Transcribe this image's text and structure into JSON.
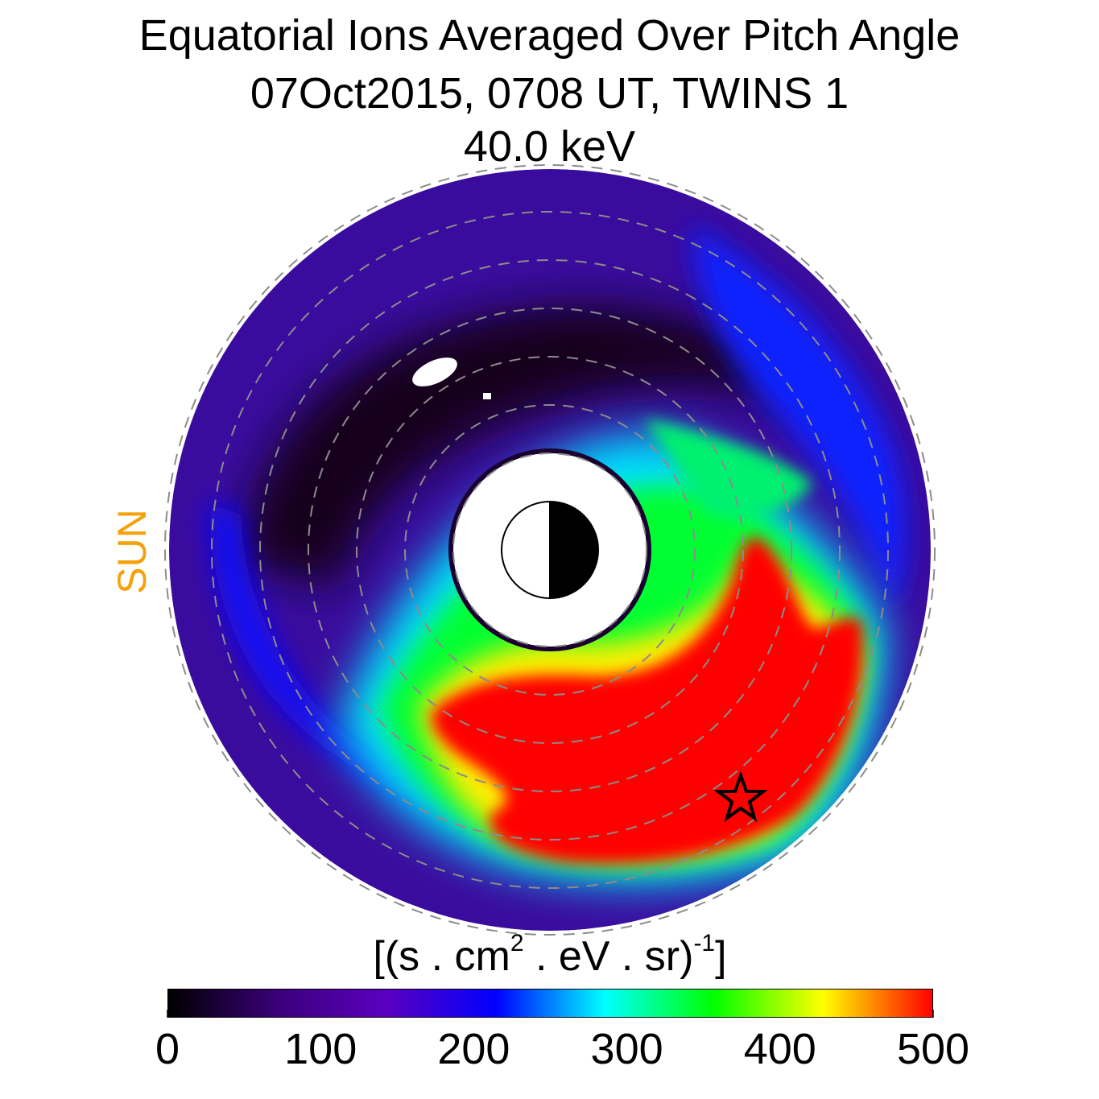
{
  "title": {
    "line1": "Equatorial Ions Averaged Over Pitch Angle",
    "line2": "07Oct2015, 0708 UT,  TWINS 1",
    "line3": "40.0 keV"
  },
  "chart_data": {
    "type": "heatmap",
    "projection": "polar equatorial map",
    "title": "Equatorial Ions Averaged Over Pitch Angle",
    "date": "07Oct2015",
    "time": "0708 UT",
    "spacecraft": "TWINS 1",
    "energy": "40.0 keV",
    "sun_direction_label": "SUN",
    "sun_direction": "left",
    "colorbar": {
      "label_prefix": "[(s . cm",
      "label_exp1": "2",
      "label_mid": " . eV . sr)",
      "label_exp2": "-1",
      "label_suffix": "]",
      "range": [
        0,
        500
      ],
      "ticks": [
        "0",
        "100",
        "200",
        "300",
        "400",
        "500"
      ],
      "colormap": [
        "#000000",
        "#3a007a",
        "#5a00c0",
        "#0000ff",
        "#00ffff",
        "#00ff00",
        "#ffff00",
        "#ff0000"
      ]
    },
    "radial_grid_Re": [
      2,
      3,
      4,
      5,
      6,
      7,
      8
    ],
    "inner_boundary_Re": 2,
    "outer_boundary_Re": 8,
    "flux_peak": {
      "value": 500,
      "region": "dusk-midnight (lower right)",
      "radial_range_Re": [
        3,
        7
      ],
      "local_time_range": "roughly 18 to 24 MLT"
    },
    "flux_minimum": {
      "value": 0,
      "region": "dawn-noon (upper left)"
    },
    "marker": {
      "symbol": "star",
      "description": "spacecraft position"
    }
  },
  "colors": {
    "sun_label": "#f5a10b",
    "grid": "#8c8c8c"
  }
}
